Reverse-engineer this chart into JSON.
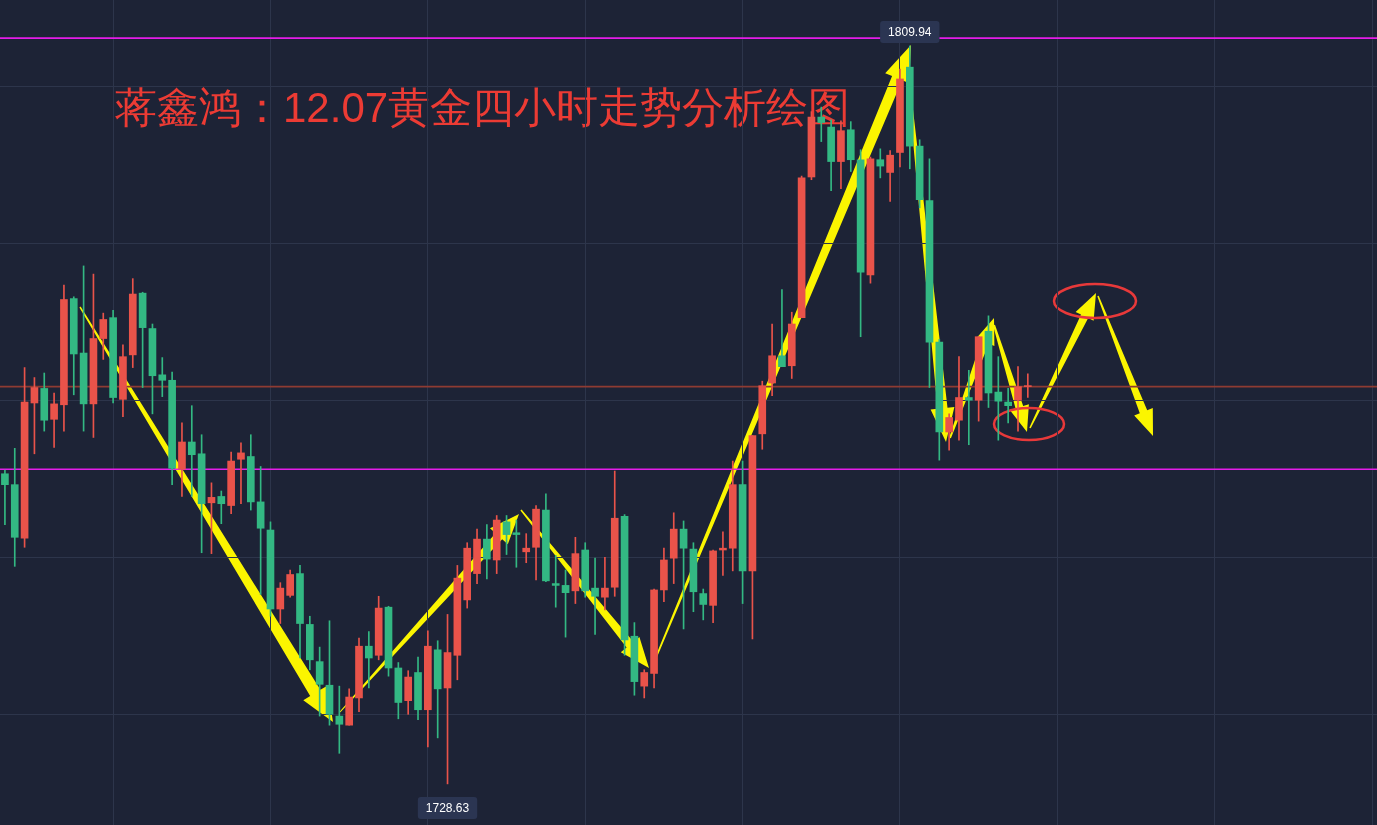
{
  "chart_data": {
    "type": "candlestick",
    "title": "蒋鑫鸿：12.07黄金四小时走势分析绘图",
    "categories": [
      null,
      null,
      null,
      null,
      null,
      null,
      null,
      null,
      null,
      null,
      null,
      null,
      null,
      null,
      null,
      null,
      null,
      null,
      null,
      null,
      null,
      null,
      null,
      null,
      null,
      null,
      null,
      null,
      null,
      null,
      null,
      null,
      null,
      null,
      null,
      null,
      null,
      null,
      null,
      null,
      null,
      null,
      null,
      null,
      null,
      null,
      null,
      null,
      null,
      null,
      null,
      null,
      null,
      null,
      null,
      null,
      null,
      null,
      null,
      null,
      null,
      null,
      null,
      null,
      null,
      null,
      null,
      null,
      null,
      null,
      null,
      null,
      null,
      null,
      null,
      null,
      null,
      null,
      null,
      null,
      null,
      null,
      null,
      null,
      null,
      null,
      null,
      null,
      null,
      null,
      null,
      null,
      null,
      null,
      null,
      null,
      null,
      null,
      null,
      null,
      null,
      null,
      null,
      null,
      null,
      null,
      null,
      null,
      null,
      null,
      null,
      null,
      null,
      null,
      null,
      null,
      null,
      null,
      null,
      null,
      null,
      null,
      null,
      null,
      null,
      null,
      null,
      null,
      null,
      null,
      null,
      null,
      null,
      null,
      null,
      null,
      null,
      null,
      null,
      null
    ],
    "ohlc": [
      [
        1762.8,
        1763.2,
        1757.2,
        1761.6
      ],
      [
        1761.6,
        1765.6,
        1752.6,
        1755.8
      ],
      [
        1755.7,
        1774.5,
        1754.7,
        1770.7
      ],
      [
        1770.6,
        1773.4,
        1765.0,
        1772.3
      ],
      [
        1772.2,
        1773.9,
        1767.5,
        1768.7
      ],
      [
        1768.8,
        1771.7,
        1765.7,
        1770.5
      ],
      [
        1770.4,
        1783.6,
        1767.5,
        1782.0
      ],
      [
        1782.1,
        1782.3,
        1771.5,
        1776.0
      ],
      [
        1776.1,
        1785.7,
        1767.5,
        1770.5
      ],
      [
        1770.5,
        1784.8,
        1766.8,
        1777.7
      ],
      [
        1777.7,
        1780.5,
        1775.4,
        1779.8
      ],
      [
        1780.0,
        1780.8,
        1770.6,
        1771.2
      ],
      [
        1771.0,
        1777.0,
        1769.1,
        1775.7
      ],
      [
        1775.9,
        1784.3,
        1774.5,
        1782.6
      ],
      [
        1782.7,
        1782.8,
        1772.3,
        1778.9
      ],
      [
        1778.8,
        1779.3,
        1769.4,
        1773.6
      ],
      [
        1773.7,
        1775.6,
        1771.3,
        1773.1
      ],
      [
        1773.1,
        1774.0,
        1761.6,
        1763.4
      ],
      [
        1763.3,
        1768.4,
        1760.3,
        1766.3
      ],
      [
        1766.3,
        1770.3,
        1760.3,
        1764.9
      ],
      [
        1765.0,
        1767.1,
        1754.1,
        1759.5
      ],
      [
        1759.6,
        1761.8,
        1754.0,
        1760.2
      ],
      [
        1760.3,
        1760.9,
        1757.3,
        1759.5
      ],
      [
        1759.3,
        1765.2,
        1758.4,
        1764.2
      ],
      [
        1764.4,
        1766.2,
        1759.5,
        1765.1
      ],
      [
        1764.7,
        1767.1,
        1758.8,
        1759.7
      ],
      [
        1759.7,
        1763.6,
        1749.5,
        1756.8
      ],
      [
        1756.6,
        1757.5,
        1747.1,
        1747.9
      ],
      [
        1747.9,
        1750.8,
        1746.3,
        1750.2
      ],
      [
        1749.4,
        1752.2,
        1749.2,
        1751.7
      ],
      [
        1751.8,
        1752.7,
        1742.5,
        1746.3
      ],
      [
        1746.2,
        1747.1,
        1741.2,
        1742.3
      ],
      [
        1742.1,
        1743.7,
        1736.1,
        1739.6
      ],
      [
        1739.5,
        1746.6,
        1735.1,
        1736.3
      ],
      [
        1736.1,
        1739.4,
        1732.0,
        1735.2
      ],
      [
        1735.1,
        1739.1,
        1735.1,
        1738.2
      ],
      [
        1738.1,
        1744.7,
        1736.6,
        1743.8
      ],
      [
        1743.8,
        1745.4,
        1739.2,
        1742.5
      ],
      [
        1742.8,
        1749.3,
        1742.3,
        1748.0
      ],
      [
        1748.1,
        1748.2,
        1740.5,
        1741.4
      ],
      [
        1741.4,
        1742.0,
        1735.8,
        1737.6
      ],
      [
        1737.8,
        1741.1,
        1736.3,
        1740.4
      ],
      [
        1740.9,
        1742.6,
        1735.7,
        1736.8
      ],
      [
        1736.8,
        1745.5,
        1732.7,
        1743.8
      ],
      [
        1743.4,
        1744.4,
        1733.7,
        1739.1
      ],
      [
        1739.2,
        1747.3,
        1728.63,
        1743.1
      ],
      [
        1742.8,
        1752.7,
        1740.1,
        1751.3
      ],
      [
        1748.9,
        1755.2,
        1748.0,
        1754.6
      ],
      [
        1751.8,
        1756.7,
        1750.7,
        1755.6
      ],
      [
        1755.6,
        1757.2,
        1751.2,
        1753.4
      ],
      [
        1753.3,
        1758.2,
        1751.8,
        1757.7
      ],
      [
        1757.5,
        1758.2,
        1753.9,
        1756.1
      ],
      [
        1756.3,
        1757.7,
        1752.5,
        1756.1
      ],
      [
        1754.2,
        1756.2,
        1753.0,
        1754.6
      ],
      [
        1754.7,
        1759.3,
        1751.1,
        1758.9
      ],
      [
        1758.8,
        1760.6,
        1750.9,
        1751.0
      ],
      [
        1750.7,
        1753.8,
        1748.1,
        1750.5
      ],
      [
        1750.5,
        1752.2,
        1744.8,
        1749.7
      ],
      [
        1749.9,
        1755.8,
        1748.5,
        1754.0
      ],
      [
        1754.4,
        1755.2,
        1749.2,
        1749.9
      ],
      [
        1750.2,
        1753.5,
        1745.1,
        1749.3
      ],
      [
        1749.2,
        1753.6,
        1747.8,
        1750.2
      ],
      [
        1750.3,
        1763.1,
        1749.3,
        1757.9
      ],
      [
        1758.1,
        1758.3,
        1742.8,
        1744.5
      ],
      [
        1744.9,
        1746.4,
        1738.4,
        1739.9
      ],
      [
        1739.4,
        1741.2,
        1738.1,
        1740.9
      ],
      [
        1740.8,
        1750.1,
        1739.2,
        1750.0
      ],
      [
        1750.0,
        1754.6,
        1748.7,
        1753.3
      ],
      [
        1753.5,
        1758.5,
        1750.7,
        1756.7
      ],
      [
        1756.7,
        1757.6,
        1745.7,
        1754.6
      ],
      [
        1754.5,
        1755.2,
        1747.6,
        1749.8
      ],
      [
        1749.6,
        1750.1,
        1746.7,
        1748.4
      ],
      [
        1748.3,
        1754.4,
        1746.4,
        1754.3
      ],
      [
        1754.4,
        1756.4,
        1751.6,
        1754.6
      ],
      [
        1754.6,
        1764.2,
        1752.1,
        1761.6
      ],
      [
        1761.6,
        1764.2,
        1748.5,
        1752.1
      ],
      [
        1752.1,
        1767.0,
        1744.6,
        1767.0
      ],
      [
        1767.2,
        1773.0,
        1765.5,
        1772.5
      ],
      [
        1772.8,
        1779.3,
        1771.4,
        1775.8
      ],
      [
        1775.8,
        1783.1,
        1774.6,
        1774.6
      ],
      [
        1774.7,
        1780.6,
        1773.3,
        1779.3
      ],
      [
        1780.0,
        1795.6,
        1780.0,
        1795.4
      ],
      [
        1795.5,
        1802.7,
        1795.2,
        1802.1
      ],
      [
        1802.1,
        1803.2,
        1799.4,
        1801.5
      ],
      [
        1801.0,
        1801.8,
        1794.0,
        1797.2
      ],
      [
        1797.2,
        1801.7,
        1794.2,
        1800.6
      ],
      [
        1800.7,
        1801.6,
        1796.1,
        1797.4
      ],
      [
        1797.4,
        1798.5,
        1777.9,
        1785.0
      ],
      [
        1784.7,
        1797.7,
        1783.8,
        1797.5
      ],
      [
        1797.4,
        1798.6,
        1795.4,
        1796.7
      ],
      [
        1796.0,
        1798.4,
        1792.8,
        1797.9
      ],
      [
        1798.2,
        1807.4,
        1796.6,
        1806.3
      ],
      [
        1807.6,
        1809.94,
        1796.4,
        1798.9
      ],
      [
        1798.9,
        1799.6,
        1792.1,
        1793.0
      ],
      [
        1792.9,
        1797.5,
        1772.3,
        1777.3
      ],
      [
        1777.3,
        1777.6,
        1764.3,
        1767.4
      ],
      [
        1767.4,
        1769.4,
        1765.4,
        1769.0
      ],
      [
        1768.7,
        1775.7,
        1766.5,
        1771.2
      ],
      [
        1771.2,
        1774.2,
        1766.0,
        1770.9
      ],
      [
        1770.9,
        1777.9,
        1768.6,
        1777.9
      ],
      [
        1778.5,
        1780.2,
        1770.1,
        1771.7
      ],
      [
        1771.8,
        1775.7,
        1766.5,
        1770.8
      ],
      [
        1770.7,
        1772.2,
        1768.4,
        1770.3
      ],
      [
        1770.9,
        1774.6,
        1767.5,
        1772.4
      ],
      [
        1772.4,
        1773.8,
        1771.2,
        1772.4
      ],
      null,
      null,
      null,
      null,
      null,
      null,
      null,
      null,
      null,
      null,
      null,
      null,
      null,
      null,
      null,
      null,
      null,
      null,
      null,
      null,
      null,
      null,
      null,
      null,
      null,
      null,
      null,
      null,
      null,
      null,
      null,
      null,
      null,
      null,
      null
    ],
    "colors": [
      "#33b883",
      "#33b883",
      "#e9534a",
      "#e9534a",
      "#33b883",
      "#e9534a",
      "#e9534a",
      "#33b883",
      "#33b883",
      "#e9534a",
      "#e9534a",
      "#33b883",
      "#e9534a",
      "#e9534a",
      "#33b883",
      "#33b883",
      "#33b883",
      "#33b883",
      "#e9534a",
      "#33b883",
      "#33b883",
      "#e9534a",
      "#33b883",
      "#e9534a",
      "#e9534a",
      "#33b883",
      "#33b883",
      "#33b883",
      "#e9534a",
      "#e9534a",
      "#33b883",
      "#33b883",
      "#33b883",
      "#33b883",
      "#33b883",
      "#e9534a",
      "#e9534a",
      "#33b883",
      "#e9534a",
      "#33b883",
      "#33b883",
      "#e9534a",
      "#33b883",
      "#e9534a",
      "#33b883",
      "#e9534a",
      "#e9534a",
      "#e9534a",
      "#e9534a",
      "#33b883",
      "#e9534a",
      "#33b883",
      "#33b883",
      "#e9534a",
      "#e9534a",
      "#33b883",
      "#33b883",
      "#33b883",
      "#e9534a",
      "#33b883",
      "#33b883",
      "#e9534a",
      "#e9534a",
      "#33b883",
      "#33b883",
      "#e9534a",
      "#e9534a",
      "#e9534a",
      "#e9534a",
      "#33b883",
      "#33b883",
      "#33b883",
      "#e9534a",
      "#e9534a",
      "#e9534a",
      "#33b883",
      "#e9534a",
      "#e9534a",
      "#e9534a",
      "#33b883",
      "#e9534a",
      "#e9534a",
      "#e9534a",
      "#33b883",
      "#33b883",
      "#e9534a",
      "#33b883",
      "#33b883",
      "#e9534a",
      "#33b883",
      "#e9534a",
      "#e9534a",
      "#33b883",
      "#33b883",
      "#33b883",
      "#33b883",
      "#e9534a",
      "#e9534a",
      "#33b883",
      "#e9534a",
      "#33b883",
      "#33b883",
      "#33b883",
      "#e9534a",
      "#e9534a",
      null,
      null,
      null,
      null,
      null,
      null,
      null,
      null,
      null,
      null,
      null,
      null,
      null,
      null,
      null,
      null,
      null,
      null,
      null,
      null,
      null,
      null,
      null,
      null,
      null,
      null,
      null,
      null,
      null,
      null,
      null,
      null,
      null,
      null,
      null
    ],
    "ylim": [
      1724.1,
      1815.0
    ],
    "yticks": [
      {
        "value": 1736.3,
        "label": null
      },
      {
        "value": 1753.6,
        "label": null
      },
      {
        "value": 1770.9,
        "label": null
      },
      {
        "value": 1788.2,
        "label": null
      },
      {
        "value": 1805.5,
        "label": null
      }
    ],
    "grid": true,
    "tick_labels": false,
    "ref_lines": [
      {
        "axis": "y",
        "value": 1810.8,
        "color": "#e41de8"
      },
      {
        "axis": "y",
        "value": 1763.3,
        "color": "#e41de8"
      },
      {
        "axis": "y",
        "value": 1772.4,
        "color": "#8e3b32"
      }
    ],
    "annotations": [
      {
        "text": "1809.94",
        "y": 1809.94
      },
      {
        "text": "1728.63",
        "y": 1728.63
      }
    ]
  }
}
